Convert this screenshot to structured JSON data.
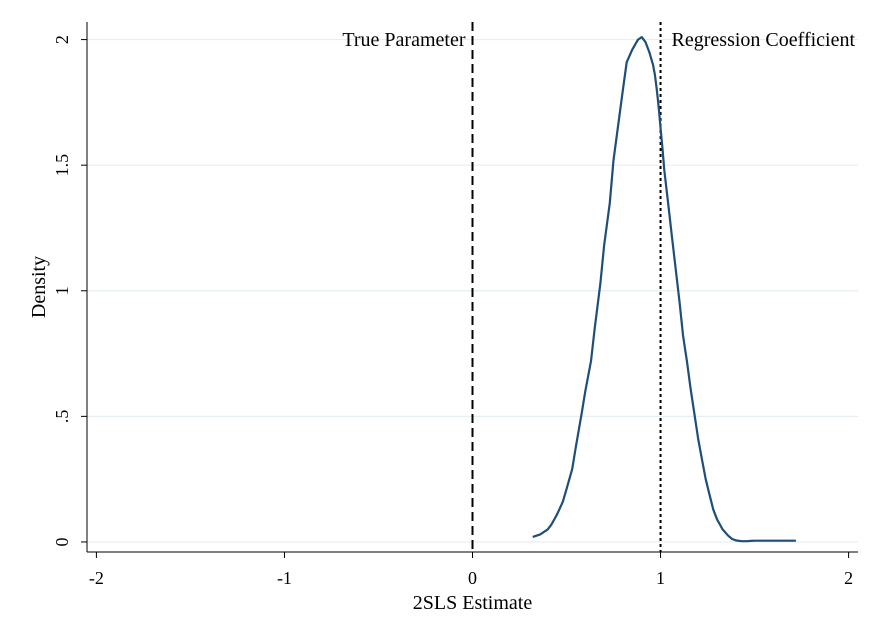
{
  "chart_data": {
    "type": "line",
    "title": "",
    "xlabel": "2SLS Estimate",
    "ylabel": "Density",
    "xlim": [
      -2.05,
      2.05
    ],
    "ylim": [
      -0.04,
      2.07
    ],
    "x_ticks": [
      -2,
      -1,
      0,
      1,
      2
    ],
    "x_tick_labels": [
      "-2",
      "-1",
      "0",
      "1",
      "2"
    ],
    "y_ticks": [
      0,
      0.5,
      1,
      1.5,
      2
    ],
    "y_tick_labels": [
      "0",
      ".5",
      "1",
      "1.5",
      "2"
    ],
    "grid": "horizontal",
    "legend": "none",
    "colors": {
      "line": "#1f4e79",
      "grid": "#e6eef2",
      "axis": "#000000"
    },
    "series": [
      {
        "x": [
          0.32,
          0.36,
          0.4,
          0.42,
          0.45,
          0.48,
          0.5,
          0.53,
          0.55,
          0.58,
          0.6,
          0.63,
          0.65,
          0.68,
          0.7,
          0.73,
          0.75,
          0.78,
          0.8,
          0.82,
          0.85,
          0.88,
          0.9,
          0.92,
          0.94,
          0.96,
          0.97,
          0.98,
          0.99,
          1.0,
          1.01,
          1.02,
          1.04,
          1.06,
          1.08,
          1.1,
          1.12,
          1.14,
          1.16,
          1.18,
          1.2,
          1.22,
          1.24,
          1.26,
          1.28,
          1.3,
          1.33,
          1.36,
          1.38,
          1.4,
          1.43,
          1.46,
          1.48,
          1.5,
          1.53,
          1.56,
          1.58,
          1.6,
          1.62,
          1.65,
          1.7,
          1.72
        ],
        "y": [
          0.02,
          0.03,
          0.05,
          0.07,
          0.11,
          0.16,
          0.21,
          0.29,
          0.38,
          0.51,
          0.6,
          0.72,
          0.85,
          1.03,
          1.18,
          1.35,
          1.52,
          1.69,
          1.8,
          1.91,
          1.96,
          2.0,
          2.01,
          1.99,
          1.95,
          1.9,
          1.86,
          1.8,
          1.73,
          1.65,
          1.57,
          1.48,
          1.35,
          1.22,
          1.09,
          0.96,
          0.82,
          0.72,
          0.61,
          0.51,
          0.41,
          0.33,
          0.25,
          0.19,
          0.13,
          0.09,
          0.05,
          0.025,
          0.012,
          0.006,
          0.003,
          0.003,
          0.004,
          0.005,
          0.005,
          0.005,
          0.005,
          0.005,
          0.005,
          0.005,
          0.005,
          0.005
        ]
      }
    ],
    "vlines": [
      {
        "x": 0,
        "style": "dashed",
        "label": "True Parameter",
        "label_side": "left"
      },
      {
        "x": 1,
        "style": "dotted",
        "label": "Regression Coefficient",
        "label_side": "right"
      }
    ]
  }
}
